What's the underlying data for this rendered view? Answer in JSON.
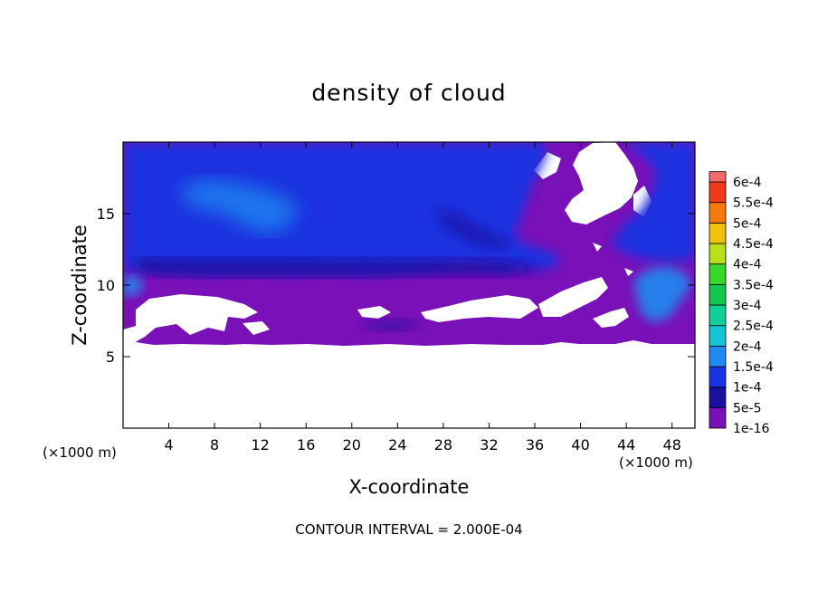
{
  "chart_data": {
    "type": "heatmap",
    "title": "density of cloud",
    "xlabel": "X-coordinate",
    "ylabel": "Z-coordinate",
    "x_unit_label": "(×1000 m)",
    "x_unit_label_right": "(×1000 m)",
    "footer": "CONTOUR INTERVAL = 2.000E-04",
    "xlim": [
      0,
      50
    ],
    "ylim": [
      0,
      20
    ],
    "x_ticks": [
      4,
      8,
      12,
      16,
      20,
      24,
      28,
      32,
      36,
      40,
      44,
      48
    ],
    "x_tick_labels": [
      "4",
      "8",
      "12",
      "16",
      "20",
      "24",
      "28",
      "32",
      "36",
      "40",
      "44",
      "48"
    ],
    "y_ticks": [
      5,
      10,
      15
    ],
    "y_tick_labels": [
      "5",
      "10",
      "15"
    ],
    "colorbar": {
      "levels": [
        "1e-16",
        "5e-5",
        "1e-4",
        "1.5e-4",
        "2e-4",
        "2.5e-4",
        "3e-4",
        "3.5e-4",
        "4e-4",
        "4.5e-4",
        "5e-4",
        "5.5e-4",
        "6e-4"
      ],
      "colors": [
        "#7a10b8",
        "#1a0fa0",
        "#1a33e0",
        "#1f8bf2",
        "#11c6d2",
        "#10d098",
        "#12c84e",
        "#38d82a",
        "#b8e01a",
        "#f2c00a",
        "#f47a0a",
        "#f03a1a",
        "#f86868"
      ]
    },
    "fields": {
      "no_cloud_color": "#ffffff",
      "low_density_color": "#7a10b8",
      "cloud_base_z": 6.0,
      "upper_cloud_base_z": 10.5,
      "upper_cloud_top_z": 19.5,
      "upper_cloud_x_extent": [
        0,
        36
      ],
      "right_cloud_x_extent": [
        43,
        50
      ]
    }
  }
}
